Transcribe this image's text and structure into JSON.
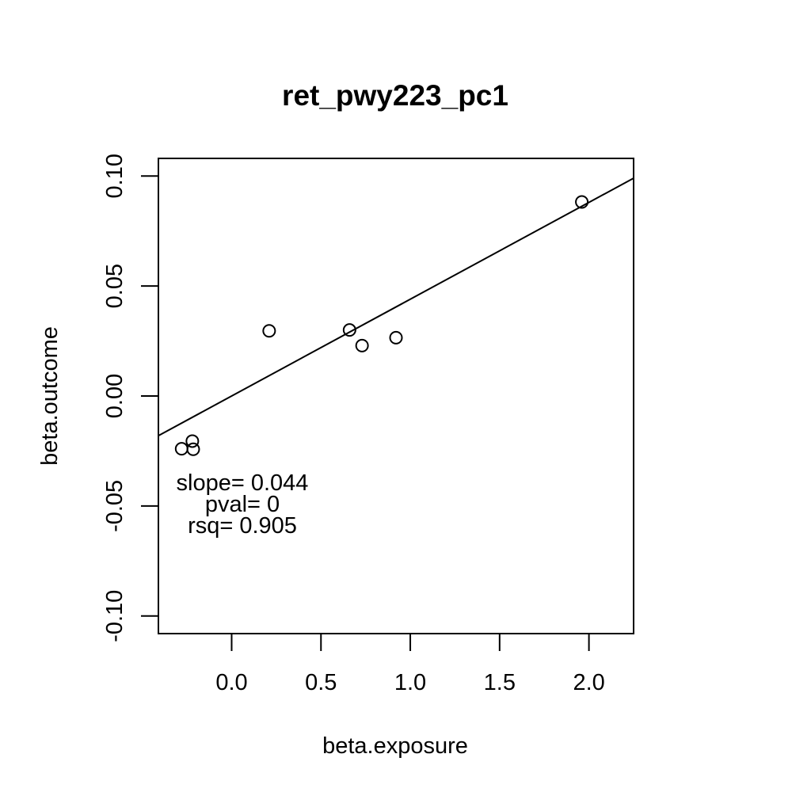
{
  "chart_data": {
    "type": "scatter",
    "title": "ret_pwy223_pc1",
    "xlabel": "beta.exposure",
    "ylabel": "beta.outcome",
    "xlim": [
      -0.41,
      2.25
    ],
    "ylim": [
      -0.108,
      0.108
    ],
    "x_ticks": [
      0.0,
      0.5,
      1.0,
      1.5,
      2.0
    ],
    "x_tick_labels": [
      "0.0",
      "0.5",
      "1.0",
      "1.5",
      "2.0"
    ],
    "y_ticks": [
      -0.1,
      -0.05,
      0.0,
      0.05,
      0.1
    ],
    "y_tick_labels": [
      "-0.10",
      "-0.05",
      "0.00",
      "0.05",
      "0.10"
    ],
    "grid": false,
    "series": [
      {
        "marker": "open-circle",
        "points": [
          {
            "x": -0.28,
            "y": -0.024
          },
          {
            "x": -0.22,
            "y": -0.0205
          },
          {
            "x": -0.215,
            "y": -0.0242
          },
          {
            "x": 0.21,
            "y": 0.0296
          },
          {
            "x": 0.66,
            "y": 0.03
          },
          {
            "x": 0.73,
            "y": 0.0229
          },
          {
            "x": 0.92,
            "y": 0.0265
          },
          {
            "x": 1.96,
            "y": 0.0882
          }
        ]
      }
    ],
    "regression_line": {
      "slope": 0.044,
      "intercept": 0.0
    },
    "annotations": [
      "slope= 0.044",
      "pval= 0",
      "rsq= 0.905"
    ]
  }
}
